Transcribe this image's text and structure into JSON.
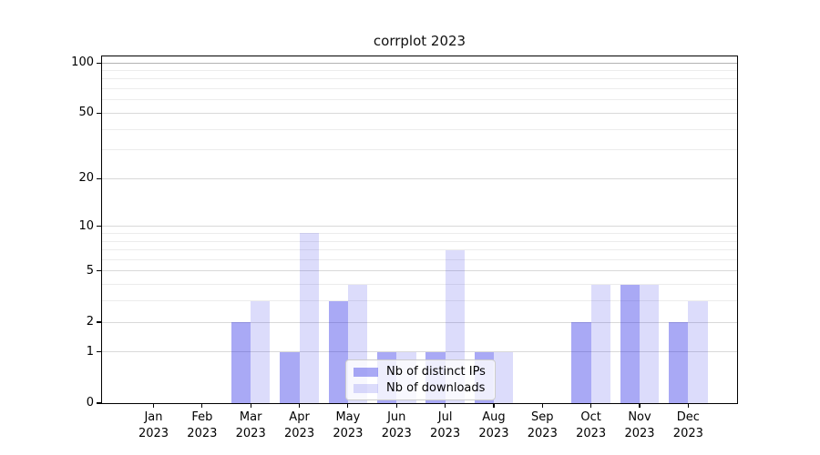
{
  "title": "corrplot 2023",
  "chart_data": {
    "type": "bar",
    "title": "corrplot 2023",
    "categories": [
      "Jan\n2023",
      "Feb\n2023",
      "Mar\n2023",
      "Apr\n2023",
      "May\n2023",
      "Jun\n2023",
      "Jul\n2023",
      "Aug\n2023",
      "Sep\n2023",
      "Oct\n2023",
      "Nov\n2023",
      "Dec\n2023"
    ],
    "series": [
      {
        "name": "Nb of distinct IPs",
        "color": "rgba(30,30,230,0.38)",
        "values": [
          0,
          0,
          2,
          1,
          3,
          1,
          1,
          1,
          0,
          2,
          4,
          2
        ]
      },
      {
        "name": "Nb of downloads",
        "color": "rgba(30,30,230,0.155)",
        "values": [
          0,
          0,
          3,
          9,
          4,
          1,
          7,
          1,
          0,
          4,
          4,
          3
        ]
      }
    ],
    "yscale": "log1p",
    "ylim": [
      0,
      112
    ],
    "y_major_ticks": [
      0,
      1,
      2,
      5,
      10,
      20,
      50,
      100
    ],
    "y_minor_ticks": [
      3,
      4,
      6,
      7,
      8,
      9,
      30,
      40,
      60,
      70,
      80,
      90
    ],
    "grid": true,
    "legend_position": "lower center",
    "xlabel": "",
    "ylabel": ""
  },
  "colors": {
    "axis": "#000000",
    "grid_major": "#d9d9d9",
    "grid_minor": "#ececec",
    "grid_top": "#b3b3b3",
    "background": "#ffffff"
  },
  "legend": {
    "items": [
      "Nb of distinct IPs",
      "Nb of downloads"
    ]
  }
}
